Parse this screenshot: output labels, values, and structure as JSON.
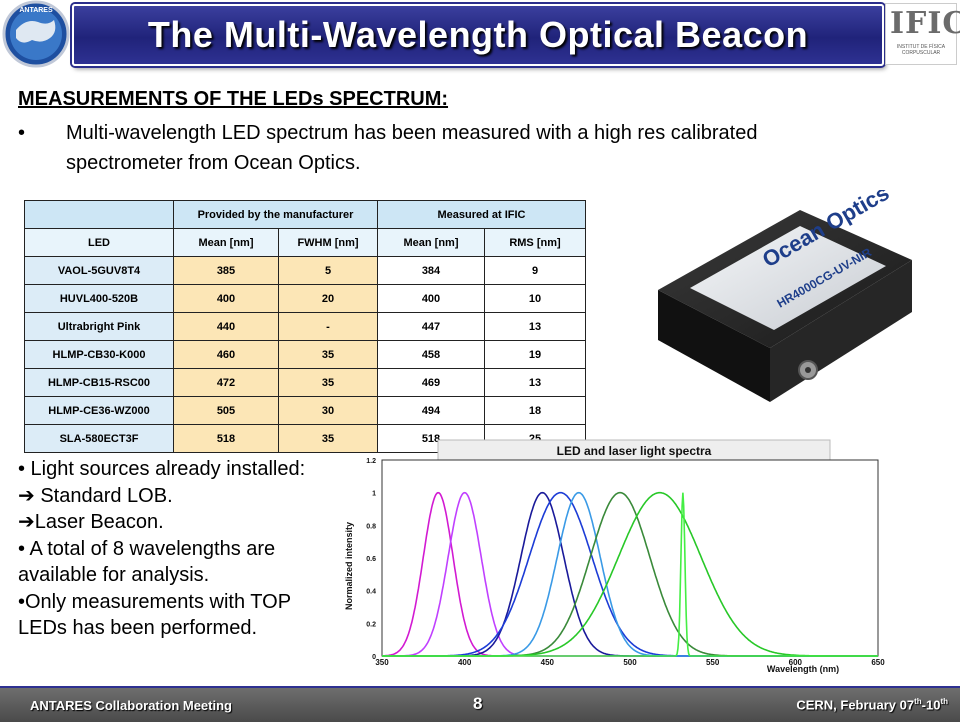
{
  "title": "The Multi-Wavelength Optical Beacon",
  "logo_left": {
    "text": "ANTARES",
    "icon": "antares-globe-logo"
  },
  "logo_right": {
    "text": "IFIC",
    "subtext": "INSTITUT DE FÍSICA CORPUSCULAR",
    "icon": "ific-logo"
  },
  "heading": "MEASUREMENTS OF THE LEDs SPECTRUM:",
  "bullet": {
    "dot": "•",
    "text": "Multi-wavelength LED spectrum has been measured with a high res calibrated spectrometer from Ocean Optics."
  },
  "table": {
    "group_headers": [
      "Provided by the manufacturer",
      "Measured  at IFIC"
    ],
    "columns": [
      "LED",
      "Mean [nm]",
      "FWHM [nm]",
      "Mean [nm]",
      "RMS [nm]"
    ],
    "rows": [
      [
        "VAOL-5GUV8T4",
        "385",
        "5",
        "384",
        "9"
      ],
      [
        "HUVL400-520B",
        "400",
        "20",
        "400",
        "10"
      ],
      [
        "Ultrabright Pink",
        "440",
        "-",
        "447",
        "13"
      ],
      [
        "HLMP-CB30-K000",
        "460",
        "35",
        "458",
        "19"
      ],
      [
        "HLMP-CB15-RSC00",
        "472",
        "35",
        "469",
        "13"
      ],
      [
        "HLMP-CE36-WZ000",
        "505",
        "30",
        "494",
        "18"
      ],
      [
        "SLA-580ECT3F",
        "518",
        "35",
        "518",
        "25"
      ]
    ]
  },
  "spectrometer": {
    "brand": "Ocean Optics",
    "model": "HR4000CG-UV-NIR",
    "icon": "spectrometer-photo"
  },
  "lower_text": [
    "• Light sources already installed:",
    "➔ Standard LOB.",
    "➔Laser Beacon.",
    "• A total of 8 wavelengths are",
    "available for analysis.",
    "•Only measurements  with TOP",
    "LEDs has been performed."
  ],
  "chart_data": {
    "type": "line",
    "title": "LED and laser light spectra",
    "xlabel": "Wavelength (nm)",
    "ylabel": "Normalized intensity",
    "xlim": [
      350,
      650
    ],
    "ylim": [
      0,
      1.2
    ],
    "xticks": [
      350,
      400,
      450,
      500,
      550,
      600,
      650
    ],
    "yticks": [
      0,
      0.2,
      0.4,
      0.6,
      0.8,
      1,
      1.2
    ],
    "grid": true,
    "series": [
      {
        "peak": 384,
        "width": 9,
        "color": "#d21ad2"
      },
      {
        "peak": 400,
        "width": 10,
        "color": "#c040ff"
      },
      {
        "peak": 447,
        "width": 13,
        "color": "#1a1a9a"
      },
      {
        "peak": 458,
        "width": 19,
        "color": "#1c3cd6"
      },
      {
        "peak": 469,
        "width": 13,
        "color": "#3a9ae6"
      },
      {
        "peak": 494,
        "width": 18,
        "color": "#3a8a3a"
      },
      {
        "peak": 518,
        "width": 25,
        "color": "#28c828"
      },
      {
        "peak": 532,
        "width": 1.2,
        "color": "#44ee44"
      }
    ]
  },
  "footer": {
    "left": "ANTARES Collaboration Meeting",
    "page": "8",
    "right_prefix": "CERN, February 07",
    "right_sup1": "th",
    "right_mid": "-10",
    "right_sup2": "th"
  }
}
